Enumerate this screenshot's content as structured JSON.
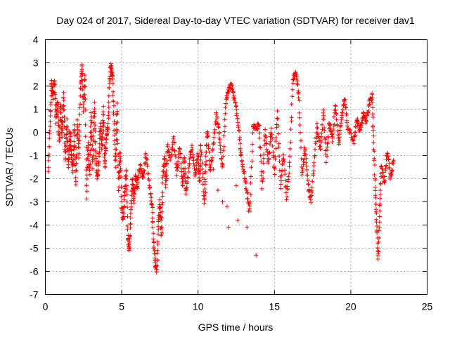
{
  "chart_data": {
    "type": "scatter",
    "title": "Day 024 of 2017, Sidereal Day-to-day VTEC variation (SDTVAR) for receiver dav1",
    "xlabel": "GPS time / hours",
    "ylabel": "SDTVAR / TECUs",
    "xlim": [
      0,
      25
    ],
    "ylim": [
      -7,
      4
    ],
    "x_ticks": [
      "0",
      "5",
      "10",
      "15",
      "20",
      "25"
    ],
    "y_ticks": [
      "4",
      "3",
      "2",
      "1",
      "0",
      "-1",
      "-2",
      "-3",
      "-4",
      "-5",
      "-6",
      "-7"
    ],
    "grid": true,
    "marker": "plus",
    "marker_color": "#ff0000",
    "series": [
      {
        "name": "SDTVAR",
        "trace": [
          [
            0.2,
            -1.6
          ],
          [
            0.3,
            0.2
          ],
          [
            0.4,
            2.2
          ],
          [
            0.5,
            1.5
          ],
          [
            0.6,
            2.3
          ],
          [
            0.7,
            0.5
          ],
          [
            0.8,
            1.4
          ],
          [
            0.9,
            -0.5
          ],
          [
            1.0,
            1.2
          ],
          [
            1.1,
            -0.2
          ],
          [
            1.2,
            1.6
          ],
          [
            1.3,
            -1.2
          ],
          [
            1.4,
            0.5
          ],
          [
            1.5,
            -1.5
          ],
          [
            1.6,
            0.0
          ],
          [
            1.7,
            -0.8
          ],
          [
            1.8,
            -1.7
          ],
          [
            1.9,
            0.3
          ],
          [
            2.0,
            -2.3
          ],
          [
            2.1,
            0.6
          ],
          [
            2.2,
            -1.0
          ],
          [
            2.3,
            1.8
          ],
          [
            2.4,
            3.0
          ],
          [
            2.5,
            1.0
          ],
          [
            2.6,
            2.5
          ],
          [
            2.7,
            -2.8
          ],
          [
            2.8,
            -0.5
          ],
          [
            2.9,
            -1.8
          ],
          [
            3.0,
            0.8
          ],
          [
            3.1,
            -1.5
          ],
          [
            3.2,
            1.2
          ],
          [
            3.3,
            -0.9
          ],
          [
            3.4,
            -2.0
          ],
          [
            3.5,
            -1.2
          ],
          [
            3.6,
            0.4
          ],
          [
            3.7,
            -0.6
          ],
          [
            3.8,
            1.0
          ],
          [
            3.9,
            -1.6
          ],
          [
            4.0,
            -0.2
          ],
          [
            4.1,
            0.2
          ],
          [
            4.2,
            2.2
          ],
          [
            4.3,
            2.9
          ],
          [
            4.4,
            2.4
          ],
          [
            4.5,
            0.5
          ],
          [
            4.6,
            -1.5
          ],
          [
            4.7,
            1.2
          ],
          [
            4.8,
            -2.4
          ],
          [
            4.9,
            -0.8
          ],
          [
            5.0,
            -3.2
          ],
          [
            5.1,
            -3.8
          ],
          [
            5.2,
            -2.6
          ],
          [
            5.3,
            -1.6
          ],
          [
            5.4,
            -4.5
          ],
          [
            5.5,
            -5.1
          ],
          [
            5.6,
            -3.6
          ],
          [
            5.7,
            -2.0
          ],
          [
            5.8,
            -3.0
          ],
          [
            5.9,
            -1.8
          ],
          [
            6.0,
            -2.4
          ],
          [
            6.2,
            -1.4
          ],
          [
            6.4,
            -2.0
          ],
          [
            6.6,
            -0.9
          ],
          [
            6.8,
            -2.2
          ],
          [
            7.0,
            -3.2
          ],
          [
            7.1,
            -4.8
          ],
          [
            7.2,
            -5.8
          ],
          [
            7.3,
            -6.0
          ],
          [
            7.4,
            -4.0
          ],
          [
            7.5,
            -3.0
          ],
          [
            7.6,
            -4.5
          ],
          [
            7.7,
            -2.0
          ],
          [
            7.8,
            -1.0
          ],
          [
            7.9,
            -2.3
          ],
          [
            8.0,
            -0.6
          ],
          [
            8.2,
            -1.2
          ],
          [
            8.4,
            -0.2
          ],
          [
            8.6,
            -1.8
          ],
          [
            8.8,
            -0.6
          ],
          [
            9.0,
            -2.3
          ],
          [
            9.1,
            -1.0
          ],
          [
            9.2,
            -2.7
          ],
          [
            9.4,
            -1.5
          ],
          [
            9.6,
            -0.6
          ],
          [
            9.8,
            -1.9
          ],
          [
            10.0,
            -0.9
          ],
          [
            10.1,
            -2.2
          ],
          [
            10.2,
            -0.5
          ],
          [
            10.4,
            -3.0
          ],
          [
            10.5,
            -1.3
          ],
          [
            10.6,
            0.1
          ],
          [
            10.8,
            -1.7
          ],
          [
            11.0,
            -0.5
          ],
          [
            11.2,
            0.8
          ],
          [
            11.4,
            -0.2
          ],
          [
            11.6,
            -1.6
          ],
          [
            11.8,
            1.1
          ],
          [
            12.0,
            1.9
          ],
          [
            12.2,
            2.0
          ],
          [
            12.4,
            1.4
          ],
          [
            12.6,
            0.5
          ],
          [
            12.8,
            -0.9
          ],
          [
            13.0,
            -1.8
          ],
          [
            13.2,
            -2.6
          ],
          [
            13.4,
            -3.4
          ],
          [
            13.6,
            0.3
          ],
          [
            13.8,
            0.2
          ],
          [
            14.0,
            0.3
          ],
          [
            14.2,
            -2.4
          ],
          [
            14.4,
            0.1
          ],
          [
            14.6,
            -1.4
          ],
          [
            14.8,
            0.2
          ],
          [
            15.0,
            -1.8
          ],
          [
            15.2,
            0.9
          ],
          [
            15.4,
            -2.3
          ],
          [
            15.6,
            -1.0
          ],
          [
            15.8,
            -2.8
          ],
          [
            16.0,
            -1.4
          ],
          [
            16.2,
            2.2
          ],
          [
            16.4,
            2.6
          ],
          [
            16.6,
            1.6
          ],
          [
            16.8,
            -1.8
          ],
          [
            17.0,
            -0.6
          ],
          [
            17.2,
            -2.3
          ],
          [
            17.4,
            -3.0
          ],
          [
            17.6,
            -1.2
          ],
          [
            17.8,
            0.3
          ],
          [
            18.0,
            -0.8
          ],
          [
            18.2,
            0.9
          ],
          [
            18.4,
            -1.2
          ],
          [
            18.6,
            0.4
          ],
          [
            18.8,
            -0.3
          ],
          [
            19.0,
            1.2
          ],
          [
            19.2,
            -0.5
          ],
          [
            19.4,
            0.7
          ],
          [
            19.6,
            1.5
          ],
          [
            19.8,
            0.2
          ],
          [
            20.2,
            -0.4
          ],
          [
            20.4,
            0.6
          ],
          [
            20.6,
            0.0
          ],
          [
            20.8,
            0.8
          ],
          [
            21.0,
            0.4
          ],
          [
            21.2,
            1.2
          ],
          [
            21.4,
            1.6
          ],
          [
            21.5,
            -0.4
          ],
          [
            21.6,
            -2.6
          ],
          [
            21.7,
            -4.0
          ],
          [
            21.8,
            -5.5
          ],
          [
            21.9,
            -3.2
          ],
          [
            22.0,
            -1.4
          ],
          [
            22.2,
            -2.2
          ],
          [
            22.4,
            -0.8
          ],
          [
            22.6,
            -2.0
          ],
          [
            22.8,
            -1.2
          ]
        ]
      }
    ],
    "outliers": [
      {
        "x": 10.4,
        "y": -2.9
      },
      {
        "x": 10.5,
        "y": -2.6
      },
      {
        "x": 11.0,
        "y": -1.6
      },
      {
        "x": 11.3,
        "y": -2.5
      },
      {
        "x": 11.6,
        "y": -3.0
      },
      {
        "x": 11.9,
        "y": -3.2
      },
      {
        "x": 12.0,
        "y": -4.1
      },
      {
        "x": 12.5,
        "y": -2.3
      },
      {
        "x": 12.6,
        "y": -3.8
      },
      {
        "x": 13.2,
        "y": -4.1
      },
      {
        "x": 13.3,
        "y": -3.4
      },
      {
        "x": 13.8,
        "y": -5.3
      }
    ]
  }
}
